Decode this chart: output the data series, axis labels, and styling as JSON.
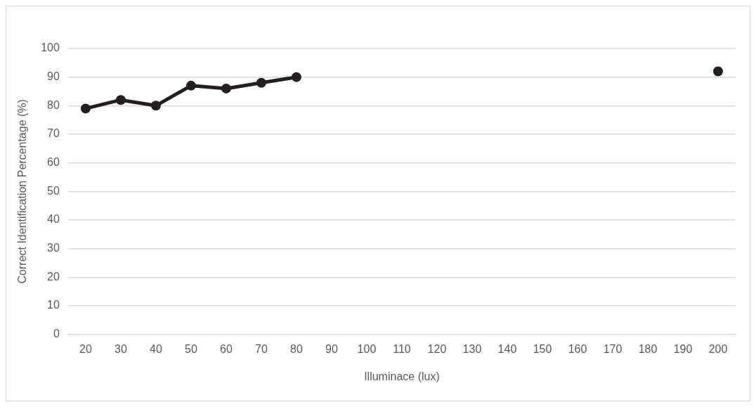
{
  "chart_data": {
    "type": "line",
    "xlabel": "Illuminace (lux)",
    "ylabel": "Correct Identification Percentage (%)",
    "categories": [
      "20",
      "30",
      "40",
      "50",
      "60",
      "70",
      "80",
      "90",
      "100",
      "110",
      "120",
      "130",
      "140",
      "150",
      "160",
      "170",
      "180",
      "190",
      "200"
    ],
    "series": [
      {
        "color": "#231f20",
        "values": [
          79,
          82,
          80,
          87,
          86,
          88,
          90,
          null,
          null,
          null,
          null,
          null,
          null,
          null,
          null,
          null,
          null,
          null,
          92
        ]
      }
    ],
    "ylim": [
      0,
      100
    ],
    "yticks": [
      0,
      10,
      20,
      30,
      40,
      50,
      60,
      70,
      80,
      90,
      100
    ],
    "grid": "y",
    "legend": false,
    "marker": "circle",
    "line_style": "solid"
  }
}
